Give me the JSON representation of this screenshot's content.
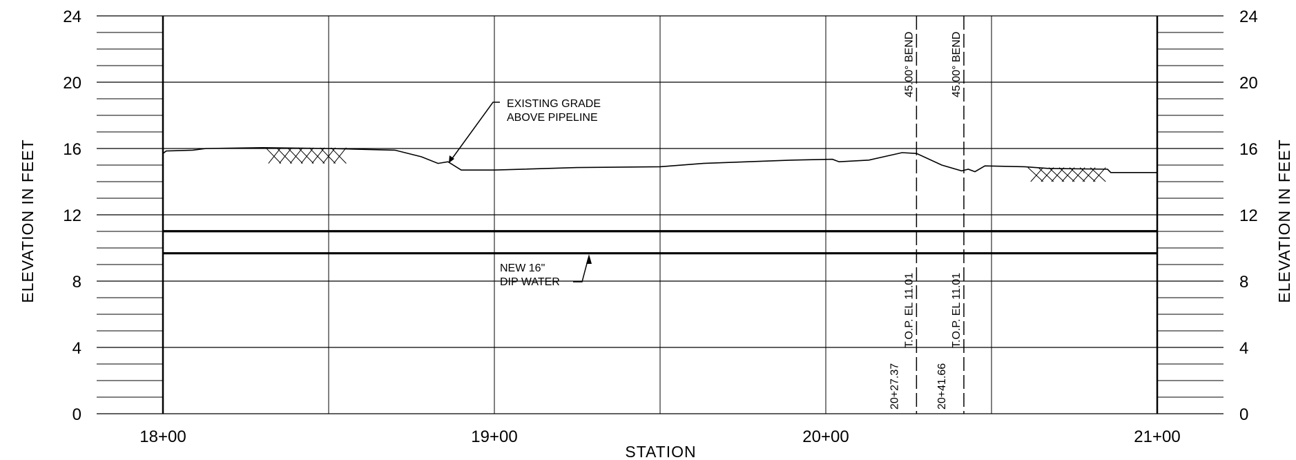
{
  "chart_data": {
    "type": "line",
    "xlabel": "STATION",
    "ylabel": "ELEVATION IN FEET",
    "xlim": [
      1800,
      2100
    ],
    "ylim": [
      0,
      24
    ],
    "x_ticks": [
      {
        "value": 1800,
        "label": "18+00"
      },
      {
        "value": 1900,
        "label": "19+00"
      },
      {
        "value": 2000,
        "label": "20+00"
      },
      {
        "value": 2100,
        "label": "21+00"
      }
    ],
    "y_ticks": [
      {
        "value": 0,
        "label": "0"
      },
      {
        "value": 4,
        "label": "4"
      },
      {
        "value": 8,
        "label": "8"
      },
      {
        "value": 12,
        "label": "12"
      },
      {
        "value": 16,
        "label": "16"
      },
      {
        "value": 20,
        "label": "20"
      },
      {
        "value": 24,
        "label": "24"
      }
    ],
    "grid": true,
    "series": [
      {
        "points": [
          [
            1800,
            15.7
          ],
          [
            1801,
            15.85
          ],
          [
            1809,
            15.9
          ],
          [
            1813,
            16.0
          ],
          [
            1830,
            16.05
          ],
          [
            1850,
            16.0
          ],
          [
            1870,
            15.9
          ],
          [
            1878,
            15.5
          ],
          [
            1883,
            15.1
          ],
          [
            1886,
            15.2
          ],
          [
            1890,
            14.7
          ],
          [
            1900,
            14.7
          ],
          [
            1925,
            14.85
          ],
          [
            1950,
            14.9
          ],
          [
            1963,
            15.1
          ],
          [
            1990,
            15.3
          ],
          [
            2002,
            15.35
          ],
          [
            2004,
            15.2
          ],
          [
            2013,
            15.3
          ],
          [
            2023,
            15.75
          ],
          [
            2027.37,
            15.7
          ],
          [
            2035,
            15.0
          ],
          [
            2041,
            14.65
          ],
          [
            2043,
            14.75
          ],
          [
            2045,
            14.6
          ],
          [
            2048,
            14.95
          ],
          [
            2060,
            14.9
          ],
          [
            2067,
            14.8
          ],
          [
            2085,
            14.75
          ],
          [
            2086,
            14.55
          ],
          [
            2100,
            14.55
          ]
        ]
      },
      {
        "y": 11.01
      },
      {
        "y": 9.68
      }
    ],
    "hatched_areas": [
      {
        "x": [
          1831,
          1854
        ],
        "y": [
          15.1,
          16.05
        ]
      },
      {
        "x": [
          2061,
          2083
        ],
        "y": [
          14.0,
          14.85
        ]
      }
    ]
  },
  "annotations": {
    "grade_line1": "EXISTING GRADE",
    "grade_line2": "ABOVE PIPELINE",
    "pipe_line1": "NEW 16\"",
    "pipe_line2": "DIP WATER"
  },
  "bends": [
    {
      "station": 2027.37,
      "bend": "45.00° BEND",
      "elev": "T.O.P. EL 11.01",
      "station_label": "20+27.37"
    },
    {
      "station": 2041.66,
      "bend": "45.00° BEND",
      "elev": "T.O.P. EL 11.01",
      "station_label": "20+41.66"
    }
  ]
}
